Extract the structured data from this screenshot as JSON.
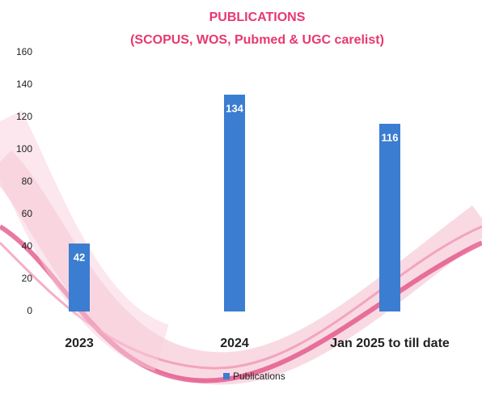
{
  "chart_data": {
    "type": "bar",
    "title": "PUBLICATIONS",
    "subtitle": "(SCOPUS, WOS, Pubmed & UGC carelist)",
    "categories": [
      "2023",
      "2024",
      "Jan 2025 to till date"
    ],
    "series": [
      {
        "name": "Publications",
        "color": "#3b7dd0",
        "values": [
          42,
          134,
          116
        ]
      }
    ],
    "ylim": [
      0,
      160
    ],
    "yticks": [
      0,
      20,
      40,
      60,
      80,
      100,
      120,
      140,
      160
    ],
    "grid": false,
    "legend": "bottom"
  }
}
